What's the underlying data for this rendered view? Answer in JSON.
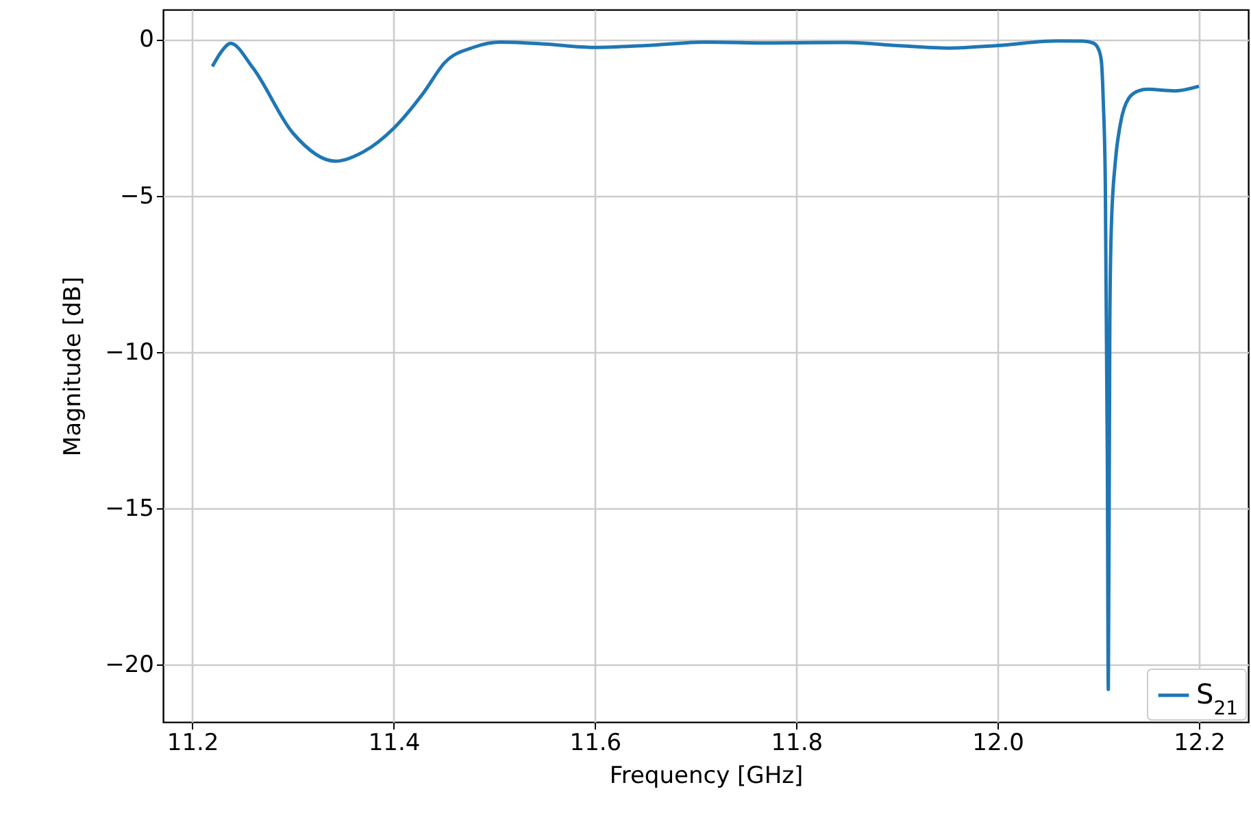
{
  "chart_data": {
    "type": "line",
    "xlabel": "Frequency [GHz]",
    "ylabel": "Magnitude [dB]",
    "xlim": [
      11.171,
      12.249
    ],
    "xticks": [
      11.2,
      11.4,
      11.6,
      11.8,
      {
        "value": 12,
        "label": "12.0"
      },
      12.2
    ],
    "ylim": [
      -21.84,
      0.95
    ],
    "yticks": [
      0,
      -5,
      -10,
      -15,
      -20
    ],
    "grid": true,
    "legend": "bottom right",
    "marker": "none",
    "line_style": "solid",
    "series": [
      {
        "name": "S$_{21}$",
        "color": "#1f77b4",
        "x": [
          11.22,
          11.23,
          11.238,
          11.26,
          11.3,
          11.342,
          11.37,
          11.4,
          11.43,
          11.451,
          11.48,
          11.506,
          11.55,
          11.599,
          11.65,
          11.71,
          11.78,
          11.85,
          11.9,
          11.952,
          12.0,
          12.059,
          12.085,
          12.095,
          12.1,
          12.103,
          12.105,
          12.107,
          12.109,
          12.11,
          12.1115,
          12.113,
          12.117,
          12.122,
          12.13,
          12.14,
          12.149,
          12.176,
          12.2
        ],
        "values": [
          -0.87,
          -0.35,
          -0.13,
          -0.9,
          -3.0,
          -3.9,
          -3.6,
          -2.85,
          -1.7,
          -0.74,
          -0.25,
          -0.09,
          -0.15,
          -0.26,
          -0.2,
          -0.09,
          -0.12,
          -0.1,
          -0.2,
          -0.28,
          -0.2,
          -0.05,
          -0.06,
          -0.12,
          -0.3,
          -0.67,
          -2.0,
          -4.6,
          -13.3,
          -20.8,
          -8.96,
          -6.0,
          -3.9,
          -2.7,
          -1.9,
          -1.65,
          -1.6,
          -1.65,
          -1.5
        ]
      }
    ]
  }
}
